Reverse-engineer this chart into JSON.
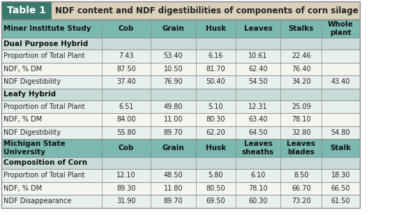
{
  "title_box_text": "Table 1",
  "title_text": "NDF content and NDF digestibilities of components of corn silage",
  "title_box_color": "#3a7a6e",
  "title_text_color": "#ffffff",
  "header_bg_color": "#7ab8b0",
  "odd_row_color": "#e8f0ef",
  "even_row_color": "#f5f5f0",
  "section_row_color": "#c8dbd8",
  "border_color": "#888888",
  "header1": {
    "col0": "Miner Institute Study",
    "cols": [
      "Cob",
      "Grain",
      "Husk",
      "Leaves",
      "Stalks",
      "Whole\nplant"
    ]
  },
  "header2": {
    "col0": "Michigan State\nUniversity",
    "cols": [
      "Cob",
      "Grain",
      "Husk",
      "Leaves\nsheaths",
      "Leaves\nblades",
      "Stalk"
    ]
  },
  "sections": [
    {
      "section_label": "Dual Purpose Hybrid",
      "rows": [
        [
          "Proportion of Total Plant",
          "7.43",
          "53.40",
          "6.16",
          "10.61",
          "22.46",
          ""
        ],
        [
          "NDF, % DM",
          "87.50",
          "10.50",
          "81.70",
          "62.40",
          "76.40",
          ""
        ],
        [
          "NDF Digestibility",
          "37.40",
          "76.90",
          "50.40",
          "54.50",
          "34.20",
          "43.40"
        ]
      ]
    },
    {
      "section_label": "Leafy Hybrid",
      "rows": [
        [
          "Proportion of Total Plant",
          "6.51",
          "49.80",
          "5.10",
          "12.31",
          "25.09",
          ""
        ],
        [
          "NDF, % DM",
          "84.00",
          "11.00",
          "80.30",
          "63.40",
          "78.10",
          ""
        ],
        [
          "NDF Digestibility",
          "55.80",
          "89.70",
          "62.20",
          "64.50",
          "32.80",
          "54.80"
        ]
      ]
    },
    {
      "section_label": "Composition of Corn",
      "rows": [
        [
          "Proportion of Total Plant",
          "12.10",
          "48.50",
          "5.80",
          "6.10",
          "8.50",
          "18.30"
        ],
        [
          "NDF, % DM",
          "89.30",
          "11.80",
          "80.50",
          "78.10",
          "66.70",
          "66.50"
        ],
        [
          "NDF Disappearance",
          "31.90",
          "89.70",
          "69.50",
          "60.30",
          "73.20",
          "61.50"
        ]
      ]
    }
  ]
}
